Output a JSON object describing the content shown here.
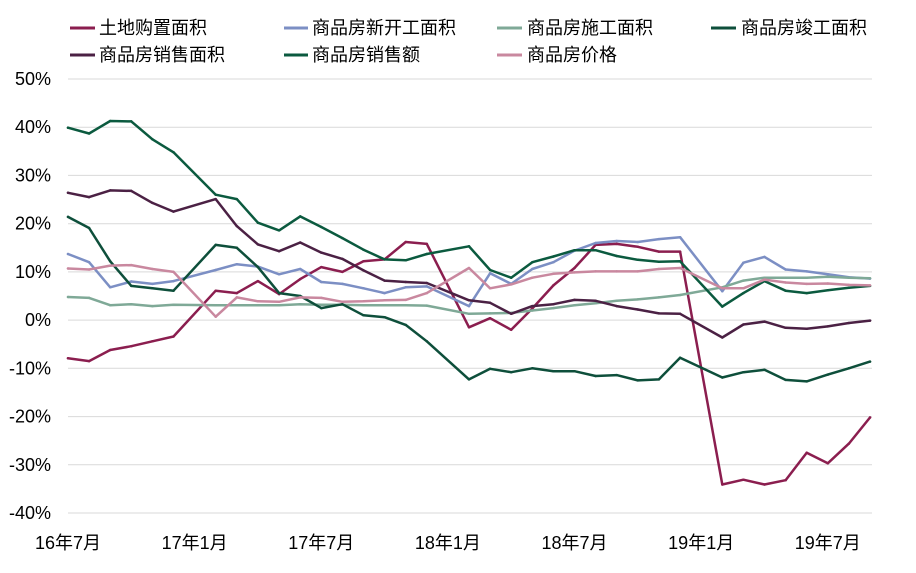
{
  "chart_data": {
    "type": "line",
    "x": [
      "2016-07",
      "2016-08",
      "2016-09",
      "2016-10",
      "2016-11",
      "2016-12",
      "2017-02",
      "2017-03",
      "2017-04",
      "2017-05",
      "2017-06",
      "2017-07",
      "2017-08",
      "2017-09",
      "2017-10",
      "2017-11",
      "2017-12",
      "2018-02",
      "2018-03",
      "2018-04",
      "2018-05",
      "2018-06",
      "2018-07",
      "2018-08",
      "2018-09",
      "2018-10",
      "2018-11",
      "2018-12",
      "2019-02",
      "2019-03",
      "2019-04",
      "2019-05",
      "2019-06",
      "2019-07",
      "2019-08",
      "2019-09"
    ],
    "xlim": [
      "2016-07",
      "2019-09"
    ],
    "ylim": [
      -40,
      50
    ],
    "x_ticks": [
      {
        "x": "2016-07",
        "label": "16年7月"
      },
      {
        "x": "2017-01",
        "label": "17年1月"
      },
      {
        "x": "2017-07",
        "label": "17年7月"
      },
      {
        "x": "2018-01",
        "label": "18年1月"
      },
      {
        "x": "2018-07",
        "label": "18年7月"
      },
      {
        "x": "2019-01",
        "label": "19年1月"
      },
      {
        "x": "2019-07",
        "label": "19年7月"
      }
    ],
    "y_ticks": [
      {
        "y": 50,
        "label": "50%"
      },
      {
        "y": 40,
        "label": "40%"
      },
      {
        "y": 30,
        "label": "30%"
      },
      {
        "y": 20,
        "label": "20%"
      },
      {
        "y": 10,
        "label": "10%"
      },
      {
        "y": 0,
        "label": "0%"
      },
      {
        "y": -10,
        "label": "-10%"
      },
      {
        "y": -20,
        "label": "-20%"
      },
      {
        "y": -30,
        "label": "-30%"
      },
      {
        "y": -40,
        "label": "-40%"
      }
    ],
    "grid": "horizontal",
    "legend": "top",
    "series": [
      {
        "name": "土地购置面积",
        "color": "#8B1E4F",
        "values": [
          -7.9,
          -8.5,
          -6.2,
          -5.4,
          -4.4,
          -3.4,
          6.1,
          5.6,
          8.1,
          5.4,
          8.5,
          11.0,
          10.0,
          12.2,
          12.6,
          16.2,
          15.8,
          -1.5,
          0.4,
          -2.0,
          2.4,
          7.2,
          10.8,
          15.6,
          15.8,
          15.2,
          14.2,
          14.2,
          -34.1,
          -33.1,
          -34.1,
          -33.2,
          -27.5,
          -29.7,
          -25.6,
          -20.2
        ]
      },
      {
        "name": "商品房新开工面积",
        "color": "#7C8FC4",
        "values": [
          13.7,
          12.0,
          6.8,
          8.0,
          7.5,
          8.1,
          10.4,
          11.6,
          11.1,
          9.5,
          10.6,
          7.9,
          7.5,
          6.6,
          5.6,
          6.8,
          7.0,
          2.9,
          9.7,
          7.5,
          10.6,
          12.0,
          14.4,
          16.0,
          16.4,
          16.2,
          16.8,
          17.2,
          6.0,
          11.9,
          13.1,
          10.5,
          10.1,
          9.5,
          8.9,
          8.6
        ]
      },
      {
        "name": "商品房施工面积",
        "color": "#7FA997",
        "values": [
          4.8,
          4.6,
          3.1,
          3.3,
          2.9,
          3.2,
          3.1,
          3.1,
          3.1,
          3.1,
          3.3,
          3.2,
          3.2,
          3.1,
          3.1,
          3.1,
          3.0,
          1.3,
          1.4,
          1.5,
          2.0,
          2.5,
          3.1,
          3.5,
          4.0,
          4.3,
          4.7,
          5.2,
          6.8,
          8.2,
          8.8,
          8.8,
          8.8,
          9.0,
          8.8,
          8.7
        ]
      },
      {
        "name": "商品房竣工面积",
        "color": "#0E4F3B",
        "values": [
          21.4,
          19.1,
          12.2,
          7.1,
          6.6,
          6.1,
          15.6,
          15.0,
          11.0,
          5.6,
          5.0,
          2.5,
          3.3,
          1.0,
          0.6,
          -1.0,
          -4.4,
          -12.3,
          -10.1,
          -10.8,
          -10.0,
          -10.6,
          -10.6,
          -11.6,
          -11.4,
          -12.5,
          -12.3,
          -7.8,
          -11.9,
          -10.8,
          -10.3,
          -12.4,
          -12.7,
          -11.3,
          -10.0,
          -8.6
        ]
      },
      {
        "name": "商品房销售面积",
        "color": "#4B2144",
        "values": [
          26.4,
          25.5,
          26.9,
          26.8,
          24.3,
          22.5,
          25.1,
          19.5,
          15.7,
          14.3,
          16.1,
          14.0,
          12.7,
          10.3,
          8.2,
          7.9,
          7.7,
          4.1,
          3.6,
          1.3,
          2.9,
          3.3,
          4.2,
          4.0,
          2.9,
          2.2,
          1.4,
          1.3,
          -3.6,
          -0.9,
          -0.3,
          -1.6,
          -1.8,
          -1.3,
          -0.6,
          -0.1
        ]
      },
      {
        "name": "商品房销售额",
        "color": "#0B5A3F",
        "values": [
          39.9,
          38.7,
          41.3,
          41.2,
          37.5,
          34.8,
          26.0,
          25.1,
          20.2,
          18.6,
          21.5,
          19.3,
          17.0,
          14.6,
          12.6,
          12.4,
          13.7,
          15.3,
          10.4,
          8.8,
          12.0,
          13.2,
          14.5,
          14.5,
          13.3,
          12.5,
          12.1,
          12.2,
          2.8,
          5.6,
          8.1,
          6.1,
          5.6,
          6.2,
          6.7,
          7.1
        ]
      },
      {
        "name": "商品房价格",
        "color": "#C9889F",
        "values": [
          10.7,
          10.5,
          11.3,
          11.4,
          10.6,
          10.0,
          0.7,
          4.7,
          3.9,
          3.8,
          4.7,
          4.6,
          3.8,
          3.9,
          4.1,
          4.2,
          5.6,
          10.8,
          6.6,
          7.4,
          8.8,
          9.6,
          9.9,
          10.1,
          10.1,
          10.1,
          10.6,
          10.8,
          6.6,
          6.6,
          8.4,
          7.8,
          7.5,
          7.6,
          7.3,
          7.2
        ]
      }
    ]
  }
}
